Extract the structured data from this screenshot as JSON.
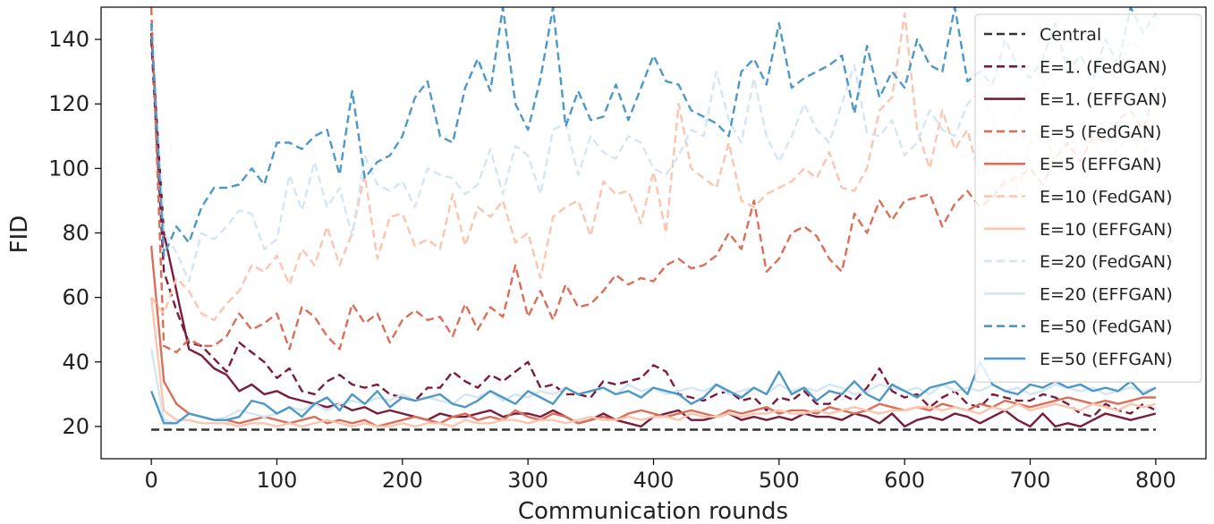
{
  "chart_data": {
    "type": "line",
    "title": "",
    "xlabel": "Communication rounds",
    "ylabel": "FID",
    "xlim": [
      -40,
      840
    ],
    "ylim": [
      10,
      150
    ],
    "xticks": [
      0,
      100,
      200,
      300,
      400,
      500,
      600,
      700,
      800
    ],
    "yticks": [
      20,
      40,
      60,
      80,
      100,
      120,
      140
    ],
    "grid": false,
    "legend_position": "top-right",
    "x": [
      0,
      10,
      20,
      30,
      40,
      50,
      60,
      70,
      80,
      90,
      100,
      110,
      120,
      130,
      140,
      150,
      160,
      170,
      180,
      190,
      200,
      210,
      220,
      230,
      240,
      250,
      260,
      270,
      280,
      290,
      300,
      310,
      320,
      330,
      340,
      350,
      360,
      370,
      380,
      390,
      400,
      410,
      420,
      430,
      440,
      450,
      460,
      470,
      480,
      490,
      500,
      510,
      520,
      530,
      540,
      550,
      560,
      570,
      580,
      590,
      600,
      610,
      620,
      630,
      640,
      650,
      660,
      670,
      680,
      690,
      700,
      710,
      720,
      730,
      740,
      750,
      760,
      770,
      780,
      790,
      800
    ],
    "series": [
      {
        "name": "Central",
        "color": "#333333",
        "dash": true,
        "values": [
          19,
          19,
          19,
          19,
          19,
          19,
          19,
          19,
          19,
          19,
          19,
          19,
          19,
          19,
          19,
          19,
          19,
          19,
          19,
          19,
          19,
          19,
          19,
          19,
          19,
          19,
          19,
          19,
          19,
          19,
          19,
          19,
          19,
          19,
          19,
          19,
          19,
          19,
          19,
          19,
          19,
          19,
          19,
          19,
          19,
          19,
          19,
          19,
          19,
          19,
          19,
          19,
          19,
          19,
          19,
          19,
          19,
          19,
          19,
          19,
          19,
          19,
          19,
          19,
          19,
          19,
          19,
          19,
          19,
          19,
          19,
          19,
          19,
          19,
          19,
          19,
          19,
          19,
          19,
          19,
          19
        ]
      },
      {
        "name": "E=1. (FedGAN)",
        "color": "#7b1c3a",
        "dash": true,
        "values": [
          140,
          68,
          56,
          46,
          45,
          41,
          37,
          46,
          43,
          40,
          35,
          38,
          31,
          30,
          34,
          36,
          33,
          32,
          33,
          30,
          29,
          28,
          32,
          32,
          37,
          34,
          32,
          36,
          34,
          37,
          40,
          32,
          33,
          30,
          30,
          29,
          34,
          33,
          34,
          35,
          39,
          37,
          30,
          29,
          28,
          30,
          31,
          28,
          29,
          25,
          29,
          28,
          31,
          27,
          27,
          30,
          28,
          32,
          38,
          31,
          29,
          30,
          26,
          29,
          31,
          27,
          26,
          30,
          29,
          28,
          28,
          30,
          29,
          27,
          24,
          23,
          27,
          25,
          24,
          27,
          25
        ]
      },
      {
        "name": "E=1. (EFFGAN)",
        "color": "#7b1c3a",
        "dash": false,
        "values": [
          142,
          80,
          62,
          44,
          42,
          38,
          36,
          31,
          33,
          30,
          31,
          29,
          28,
          27,
          26,
          27,
          25,
          26,
          24,
          25,
          24,
          23,
          22,
          24,
          23,
          23,
          24,
          25,
          23,
          24,
          24,
          23,
          25,
          23,
          21,
          22,
          24,
          22,
          21,
          20,
          23,
          24,
          25,
          22,
          22,
          23,
          24,
          22,
          23,
          22,
          23,
          22,
          24,
          23,
          23,
          22,
          24,
          23,
          21,
          24,
          20,
          22,
          23,
          22,
          24,
          23,
          21,
          23,
          25,
          22,
          20,
          24,
          20,
          21,
          20,
          22,
          24,
          23,
          22,
          23,
          24
        ]
      },
      {
        "name": "E=5 (FedGAN)",
        "color": "#dc6e57",
        "dash": true,
        "values": [
          150,
          45,
          43,
          47,
          45,
          45,
          48,
          55,
          50,
          52,
          55,
          44,
          57,
          54,
          48,
          44,
          58,
          52,
          55,
          46,
          53,
          56,
          53,
          54,
          48,
          58,
          50,
          57,
          54,
          70,
          54,
          62,
          53,
          64,
          57,
          58,
          62,
          67,
          64,
          66,
          65,
          70,
          72,
          69,
          70,
          73,
          80,
          75,
          90,
          68,
          72,
          80,
          82,
          79,
          72,
          68,
          86,
          80,
          90,
          84,
          90,
          91,
          92,
          82,
          89,
          93,
          88,
          91,
          96,
          97,
          100,
          95,
          103,
          108,
          102,
          110,
          108,
          115,
          118,
          112,
          125
        ]
      },
      {
        "name": "E=5 (EFFGAN)",
        "color": "#dc6e57",
        "dash": false,
        "values": [
          76,
          34,
          27,
          24,
          23,
          22,
          22,
          21,
          22,
          23,
          22,
          21,
          22,
          23,
          21,
          22,
          21,
          22,
          20,
          21,
          22,
          23,
          22,
          21,
          23,
          24,
          22,
          23,
          22,
          25,
          23,
          22,
          24,
          23,
          21,
          22,
          23,
          22,
          24,
          25,
          24,
          23,
          24,
          25,
          24,
          23,
          25,
          24,
          25,
          26,
          24,
          25,
          25,
          24,
          26,
          25,
          24,
          25,
          27,
          26,
          25,
          26,
          25,
          27,
          26,
          25,
          27,
          26,
          28,
          27,
          26,
          27,
          28,
          29,
          28,
          27,
          28,
          27,
          28,
          29,
          29
        ]
      },
      {
        "name": "E=10 (FedGAN)",
        "color": "#fbc5ae",
        "dash": true,
        "values": [
          60,
          55,
          66,
          62,
          55,
          53,
          58,
          62,
          70,
          68,
          73,
          64,
          75,
          70,
          82,
          70,
          80,
          98,
          72,
          85,
          86,
          76,
          78,
          75,
          92,
          76,
          88,
          85,
          90,
          77,
          80,
          66,
          85,
          88,
          90,
          79,
          96,
          92,
          93,
          83,
          99,
          80,
          120,
          100,
          97,
          94,
          108,
          90,
          88,
          92,
          94,
          96,
          100,
          97,
          105,
          94,
          93,
          100,
          118,
          122,
          148,
          112,
          100,
          118,
          106,
          112,
          97,
          102,
          106,
          93,
          108,
          112,
          103,
          100,
          110,
          108,
          102,
          106,
          111,
          103,
          116
        ]
      },
      {
        "name": "E=10 (EFFGAN)",
        "color": "#fbc5ae",
        "dash": false,
        "values": [
          60,
          25,
          22,
          22,
          21,
          21,
          21,
          20,
          21,
          21,
          20,
          21,
          20,
          21,
          22,
          21,
          20,
          21,
          20,
          20,
          21,
          20,
          21,
          21,
          20,
          22,
          21,
          21,
          22,
          22,
          21,
          22,
          22,
          21,
          22,
          23,
          22,
          22,
          23,
          22,
          23,
          23,
          22,
          24,
          23,
          23,
          24,
          23,
          24,
          24,
          25,
          24,
          24,
          25,
          24,
          25,
          26,
          25,
          24,
          25,
          25,
          26,
          26,
          25,
          26,
          25,
          24,
          26,
          25,
          27,
          25,
          26,
          27,
          26,
          25,
          27,
          26,
          25,
          27,
          26,
          27
        ]
      },
      {
        "name": "E=20 (FedGAN)",
        "color": "#d4e6f4",
        "dash": true,
        "values": [
          145,
          80,
          74,
          65,
          80,
          78,
          82,
          87,
          86,
          75,
          78,
          98,
          87,
          102,
          88,
          94,
          79,
          104,
          95,
          93,
          96,
          88,
          100,
          98,
          97,
          92,
          95,
          106,
          92,
          107,
          104,
          92,
          112,
          114,
          98,
          110,
          105,
          103,
          110,
          108,
          100,
          98,
          104,
          112,
          110,
          130,
          115,
          108,
          128,
          110,
          102,
          110,
          120,
          112,
          108,
          120,
          132,
          111,
          110,
          115,
          104,
          108,
          118,
          112,
          110,
          120,
          124,
          115,
          110,
          118,
          122,
          126,
          130,
          124,
          135,
          128,
          132,
          130,
          140,
          136,
          145
        ]
      },
      {
        "name": "E=20 (EFFGAN)",
        "color": "#d4e6f4",
        "dash": false,
        "values": [
          44,
          22,
          21,
          24,
          23,
          22,
          23,
          25,
          24,
          23,
          24,
          26,
          25,
          27,
          25,
          27,
          28,
          27,
          29,
          28,
          30,
          28,
          29,
          28,
          27,
          30,
          29,
          31,
          28,
          30,
          29,
          31,
          30,
          32,
          30,
          31,
          32,
          30,
          33,
          31,
          32,
          30,
          31,
          32,
          31,
          33,
          30,
          31,
          32,
          30,
          33,
          31,
          32,
          31,
          33,
          32,
          30,
          31,
          33,
          32,
          31,
          32,
          30,
          33,
          31,
          32,
          31,
          33,
          31,
          32,
          30,
          31,
          33,
          32,
          31,
          32,
          30,
          31,
          32,
          31,
          32
        ]
      },
      {
        "name": "E=50 (FedGAN)",
        "color": "#4b98c9",
        "dash": true,
        "values": [
          145,
          73,
          82,
          77,
          88,
          94,
          94,
          95,
          100,
          95,
          108,
          108,
          106,
          110,
          112,
          98,
          124,
          97,
          102,
          104,
          110,
          122,
          127,
          110,
          108,
          125,
          134,
          124,
          150,
          120,
          112,
          128,
          150,
          113,
          124,
          115,
          116,
          126,
          115,
          125,
          135,
          127,
          126,
          118,
          116,
          114,
          110,
          130,
          134,
          126,
          145,
          125,
          128,
          130,
          132,
          135,
          117,
          138,
          122,
          130,
          125,
          140,
          132,
          130,
          150,
          127,
          130,
          126,
          140,
          132,
          128,
          134,
          145,
          130,
          135,
          128,
          140,
          132,
          150,
          142,
          148
        ]
      },
      {
        "name": "E=50 (EFFGAN)",
        "color": "#4b98c9",
        "dash": false,
        "values": [
          31,
          21,
          21,
          24,
          23,
          22,
          22,
          23,
          28,
          27,
          24,
          26,
          23,
          27,
          29,
          25,
          30,
          27,
          31,
          26,
          29,
          28,
          29,
          30,
          27,
          26,
          28,
          31,
          29,
          27,
          31,
          29,
          27,
          32,
          30,
          31,
          32,
          30,
          31,
          29,
          32,
          31,
          30,
          27,
          29,
          33,
          31,
          29,
          32,
          30,
          37,
          30,
          32,
          28,
          31,
          30,
          34,
          30,
          28,
          33,
          31,
          29,
          32,
          33,
          34,
          30,
          40,
          33,
          31,
          30,
          33,
          32,
          34,
          32,
          33,
          31,
          32,
          31,
          34,
          30,
          32
        ]
      }
    ]
  }
}
